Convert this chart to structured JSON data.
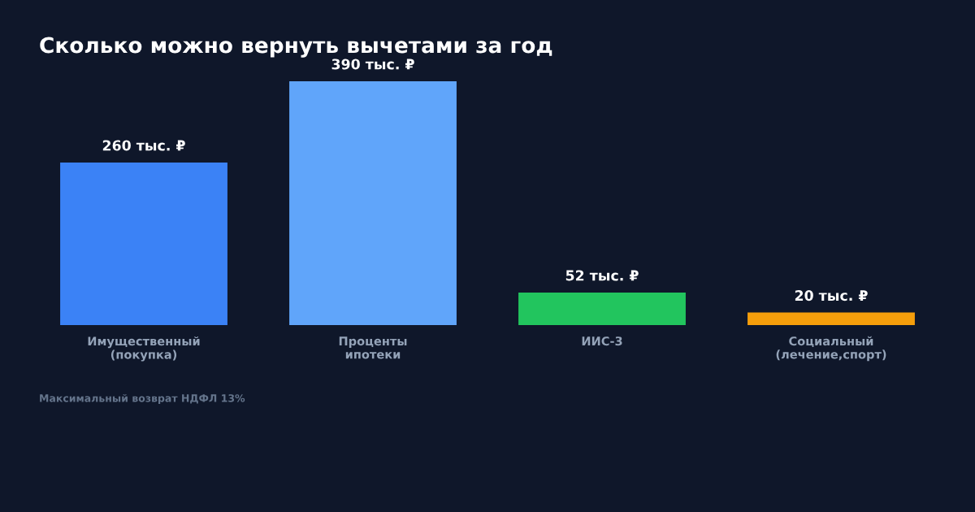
{
  "chart_data": {
    "type": "bar",
    "title": "Сколько можно вернуть вычетами за год",
    "categories": [
      "Имущественный\n(покупка)",
      "Проценты\nипотеки",
      "ИИС-3",
      "Социальный\n(лечение,спорт)"
    ],
    "values": [
      260,
      390,
      52,
      20
    ],
    "colors": [
      "#3b82f6",
      "#60a5fa",
      "#22c55e",
      "#f59e0b"
    ],
    "value_labels": [
      "260 тыс. ₽",
      "390 тыс. ₽",
      "52 тыс. ₽",
      "20 тыс. ₽"
    ],
    "annotations": [
      "Максимальный возврат НДФЛ 13%"
    ],
    "grid": false,
    "legend": false
  }
}
